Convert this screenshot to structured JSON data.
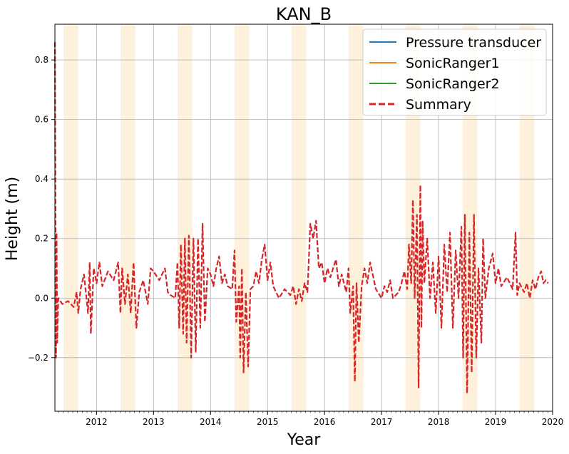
{
  "chart_data": {
    "type": "line",
    "title": "KAN_B",
    "xlabel": "Year",
    "ylabel": "Height (m)",
    "xlim": [
      2011.27,
      2020.0
    ],
    "ylim": [
      -0.38,
      0.92
    ],
    "x_ticks": [
      "2012",
      "2013",
      "2014",
      "2015",
      "2016",
      "2017",
      "2018",
      "2019",
      "2020"
    ],
    "y_ticks": [
      "−0.2",
      "0.0",
      "0.2",
      "0.4",
      "0.6",
      "0.8"
    ],
    "y_tick_values": [
      -0.2,
      0.0,
      0.2,
      0.4,
      0.6,
      0.8
    ],
    "grid": true,
    "legend_position": "top-right",
    "summer_shading": [
      [
        2011.42,
        2011.68
      ],
      [
        2012.42,
        2012.68
      ],
      [
        2013.42,
        2013.68
      ],
      [
        2014.42,
        2014.68
      ],
      [
        2015.42,
        2015.68
      ],
      [
        2016.42,
        2016.68
      ],
      [
        2017.42,
        2017.68
      ],
      [
        2018.42,
        2018.68
      ],
      [
        2019.42,
        2019.68
      ]
    ],
    "shading_color": "#fdf1dc",
    "series": [
      {
        "name": "Pressure transducer",
        "color": "#1f77b4",
        "style": "solid",
        "points": []
      },
      {
        "name": "SonicRanger1",
        "color": "#ff7f0e",
        "style": "solid",
        "points": []
      },
      {
        "name": "SonicRanger2",
        "color": "#2ca02c",
        "style": "solid",
        "points": []
      },
      {
        "name": "Summary",
        "color": "#d62728",
        "style": "dashed",
        "points": [
          [
            2011.27,
            0.86
          ],
          [
            2011.28,
            0.2
          ],
          [
            2011.29,
            -0.2
          ],
          [
            2011.3,
            0.22
          ],
          [
            2011.31,
            -0.15
          ],
          [
            2011.33,
            0.0
          ],
          [
            2011.4,
            -0.02
          ],
          [
            2011.5,
            -0.01
          ],
          [
            2011.6,
            -0.03
          ],
          [
            2011.65,
            0.02
          ],
          [
            2011.68,
            -0.05
          ],
          [
            2011.72,
            0.03
          ],
          [
            2011.78,
            0.08
          ],
          [
            2011.85,
            -0.05
          ],
          [
            2011.88,
            0.12
          ],
          [
            2011.9,
            -0.12
          ],
          [
            2011.95,
            0.1
          ],
          [
            2012.0,
            0.05
          ],
          [
            2012.05,
            0.12
          ],
          [
            2012.1,
            0.04
          ],
          [
            2012.2,
            0.09
          ],
          [
            2012.3,
            0.06
          ],
          [
            2012.38,
            0.12
          ],
          [
            2012.42,
            -0.05
          ],
          [
            2012.45,
            0.1
          ],
          [
            2012.5,
            -0.02
          ],
          [
            2012.55,
            0.08
          ],
          [
            2012.6,
            -0.05
          ],
          [
            2012.65,
            0.12
          ],
          [
            2012.7,
            -0.1
          ],
          [
            2012.75,
            0.02
          ],
          [
            2012.82,
            0.06
          ],
          [
            2012.9,
            -0.02
          ],
          [
            2012.95,
            0.1
          ],
          [
            2013.0,
            0.09
          ],
          [
            2013.1,
            0.06
          ],
          [
            2013.2,
            0.1
          ],
          [
            2013.25,
            0.02
          ],
          [
            2013.3,
            0.01
          ],
          [
            2013.38,
            0.0
          ],
          [
            2013.42,
            0.12
          ],
          [
            2013.45,
            -0.1
          ],
          [
            2013.48,
            0.18
          ],
          [
            2013.52,
            -0.12
          ],
          [
            2013.55,
            0.2
          ],
          [
            2013.58,
            -0.15
          ],
          [
            2013.62,
            0.21
          ],
          [
            2013.66,
            -0.2
          ],
          [
            2013.7,
            0.2
          ],
          [
            2013.74,
            -0.18
          ],
          [
            2013.78,
            0.2
          ],
          [
            2013.82,
            -0.1
          ],
          [
            2013.86,
            0.25
          ],
          [
            2013.9,
            -0.08
          ],
          [
            2013.95,
            0.1
          ],
          [
            2014.0,
            0.08
          ],
          [
            2014.05,
            0.04
          ],
          [
            2014.1,
            0.1
          ],
          [
            2014.15,
            0.14
          ],
          [
            2014.2,
            0.05
          ],
          [
            2014.25,
            0.08
          ],
          [
            2014.3,
            0.04
          ],
          [
            2014.38,
            0.03
          ],
          [
            2014.42,
            0.16
          ],
          [
            2014.45,
            -0.08
          ],
          [
            2014.5,
            0.04
          ],
          [
            2014.52,
            -0.2
          ],
          [
            2014.55,
            0.1
          ],
          [
            2014.58,
            -0.25
          ],
          [
            2014.62,
            0.02
          ],
          [
            2014.66,
            -0.23
          ],
          [
            2014.7,
            0.03
          ],
          [
            2014.75,
            0.04
          ],
          [
            2014.8,
            0.09
          ],
          [
            2014.85,
            0.05
          ],
          [
            2014.9,
            0.13
          ],
          [
            2014.95,
            0.18
          ],
          [
            2015.0,
            0.06
          ],
          [
            2015.05,
            0.12
          ],
          [
            2015.1,
            0.04
          ],
          [
            2015.2,
            0.0
          ],
          [
            2015.3,
            0.03
          ],
          [
            2015.4,
            0.01
          ],
          [
            2015.45,
            0.04
          ],
          [
            2015.5,
            -0.02
          ],
          [
            2015.55,
            0.03
          ],
          [
            2015.6,
            -0.01
          ],
          [
            2015.65,
            0.05
          ],
          [
            2015.7,
            0.02
          ],
          [
            2015.75,
            0.25
          ],
          [
            2015.8,
            0.2
          ],
          [
            2015.85,
            0.26
          ],
          [
            2015.9,
            0.1
          ],
          [
            2015.95,
            0.12
          ],
          [
            2016.0,
            0.05
          ],
          [
            2016.05,
            0.1
          ],
          [
            2016.1,
            0.07
          ],
          [
            2016.2,
            0.13
          ],
          [
            2016.25,
            0.04
          ],
          [
            2016.3,
            0.08
          ],
          [
            2016.38,
            0.02
          ],
          [
            2016.42,
            0.1
          ],
          [
            2016.45,
            -0.05
          ],
          [
            2016.5,
            0.04
          ],
          [
            2016.53,
            -0.28
          ],
          [
            2016.56,
            0.05
          ],
          [
            2016.6,
            -0.15
          ],
          [
            2016.65,
            0.04
          ],
          [
            2016.7,
            0.1
          ],
          [
            2016.75,
            0.05
          ],
          [
            2016.8,
            0.12
          ],
          [
            2016.9,
            0.03
          ],
          [
            2017.0,
            0.0
          ],
          [
            2017.05,
            0.04
          ],
          [
            2017.1,
            0.02
          ],
          [
            2017.15,
            0.06
          ],
          [
            2017.2,
            0.0
          ],
          [
            2017.3,
            0.02
          ],
          [
            2017.35,
            0.05
          ],
          [
            2017.4,
            0.09
          ],
          [
            2017.45,
            0.03
          ],
          [
            2017.48,
            0.18
          ],
          [
            2017.52,
            0.05
          ],
          [
            2017.55,
            0.33
          ],
          [
            2017.58,
            0.0
          ],
          [
            2017.62,
            0.28
          ],
          [
            2017.65,
            -0.3
          ],
          [
            2017.68,
            0.38
          ],
          [
            2017.7,
            -0.1
          ],
          [
            2017.72,
            0.26
          ],
          [
            2017.75,
            0.05
          ],
          [
            2017.8,
            0.2
          ],
          [
            2017.85,
            0.0
          ],
          [
            2017.9,
            0.12
          ],
          [
            2017.95,
            -0.05
          ],
          [
            2018.0,
            0.14
          ],
          [
            2018.05,
            -0.1
          ],
          [
            2018.1,
            0.18
          ],
          [
            2018.15,
            0.02
          ],
          [
            2018.2,
            0.22
          ],
          [
            2018.25,
            -0.1
          ],
          [
            2018.3,
            0.16
          ],
          [
            2018.35,
            0.0
          ],
          [
            2018.4,
            0.24
          ],
          [
            2018.43,
            -0.2
          ],
          [
            2018.46,
            0.28
          ],
          [
            2018.5,
            -0.32
          ],
          [
            2018.54,
            0.22
          ],
          [
            2018.58,
            -0.25
          ],
          [
            2018.62,
            0.28
          ],
          [
            2018.66,
            -0.2
          ],
          [
            2018.7,
            0.1
          ],
          [
            2018.75,
            -0.15
          ],
          [
            2018.78,
            0.2
          ],
          [
            2018.82,
            0.0
          ],
          [
            2018.88,
            0.1
          ],
          [
            2018.95,
            0.15
          ],
          [
            2019.0,
            0.05
          ],
          [
            2019.05,
            0.1
          ],
          [
            2019.1,
            0.04
          ],
          [
            2019.2,
            0.07
          ],
          [
            2019.3,
            0.03
          ],
          [
            2019.35,
            0.22
          ],
          [
            2019.38,
            0.01
          ],
          [
            2019.42,
            0.05
          ],
          [
            2019.5,
            0.02
          ],
          [
            2019.55,
            0.05
          ],
          [
            2019.6,
            0.0
          ],
          [
            2019.65,
            0.06
          ],
          [
            2019.7,
            0.03
          ],
          [
            2019.75,
            0.07
          ],
          [
            2019.8,
            0.09
          ],
          [
            2019.84,
            0.05
          ],
          [
            2019.88,
            0.06
          ],
          [
            2019.92,
            0.05
          ]
        ]
      }
    ]
  }
}
